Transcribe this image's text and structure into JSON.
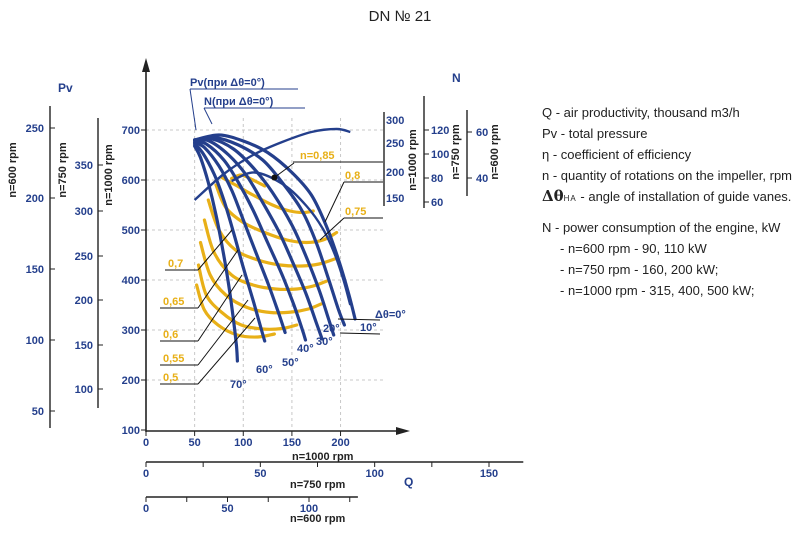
{
  "title": "DN № 21",
  "legend": {
    "q": "Q - air productivity, thousand m3/h",
    "pv": "Pv - total pressure",
    "eta": "η - coefficient of efficiency",
    "n": "n - quantity of rotations on the impeller, rpm",
    "angle_symbol": "Δθ",
    "angle_sub": "НА",
    "angle_text": " - angle of installation of guide vanes.",
    "power": "N - power consumption of the engine, kW",
    "power_600": "- n=600 rpm - 90, 110 kW",
    "power_750": "- n=750 rpm - 160, 200 kW;",
    "power_1000": "- n=1000 rpm - 315, 400, 500 kW;"
  },
  "colors": {
    "blue": "#243f8c",
    "yellow": "#e8b018",
    "grid": "#c8c8c8",
    "axis": "#222222"
  },
  "chart_data": {
    "type": "line",
    "x_axes": [
      {
        "label": "n=1000 rpm",
        "range": [
          0,
          220
        ],
        "ticks": [
          0,
          50,
          100,
          150,
          200
        ]
      },
      {
        "label": "n=750 rpm",
        "range": [
          0,
          165
        ],
        "ticks": [
          0,
          50,
          100,
          150
        ]
      },
      {
        "label": "n=600 rpm",
        "range": [
          0,
          130
        ],
        "ticks": [
          0,
          50,
          100
        ]
      }
    ],
    "x_symbol": "Q",
    "y_axes": [
      {
        "label": "n=1000 rpm",
        "ticks": [
          100,
          200,
          300,
          400,
          500,
          600,
          700
        ]
      },
      {
        "label": "n=750 rpm",
        "ticks": [
          100,
          150,
          200,
          250,
          300,
          350
        ]
      },
      {
        "label": "n=600 rpm",
        "ticks": [
          50,
          100,
          150,
          200,
          250
        ]
      }
    ],
    "y_symbol": "Pv",
    "n_axes": [
      {
        "label": "n=1000 rpm",
        "ticks": [
          150,
          200,
          250,
          300
        ]
      },
      {
        "label": "n=750 rpm",
        "ticks": [
          60,
          80,
          100,
          120
        ]
      },
      {
        "label": "n=600 rpm",
        "ticks": [
          40,
          60
        ]
      }
    ],
    "n_symbol": "N",
    "pv_curves": [
      {
        "angle": "0°",
        "points": [
          [
            50,
            680
          ],
          [
            75,
            690
          ],
          [
            100,
            678
          ],
          [
            125,
            655
          ],
          [
            150,
            615
          ],
          [
            170,
            570
          ],
          [
            185,
            510
          ],
          [
            198,
            440
          ],
          [
            208,
            375
          ],
          [
            215,
            322
          ]
        ]
      },
      {
        "angle": "10°",
        "points": [
          [
            50,
            680
          ],
          [
            70,
            685
          ],
          [
            95,
            670
          ],
          [
            120,
            640
          ],
          [
            140,
            595
          ],
          [
            160,
            540
          ],
          [
            175,
            475
          ],
          [
            188,
            400
          ],
          [
            198,
            340
          ],
          [
            204,
            310
          ]
        ]
      },
      {
        "angle": "20°",
        "points": [
          [
            50,
            680
          ],
          [
            68,
            682
          ],
          [
            90,
            662
          ],
          [
            110,
            625
          ],
          [
            130,
            575
          ],
          [
            150,
            510
          ],
          [
            165,
            445
          ],
          [
            178,
            380
          ],
          [
            188,
            320
          ],
          [
            193,
            290
          ]
        ]
      },
      {
        "angle": "30°",
        "points": [
          [
            50,
            680
          ],
          [
            65,
            678
          ],
          [
            85,
            650
          ],
          [
            103,
            610
          ],
          [
            120,
            555
          ],
          [
            137,
            495
          ],
          [
            152,
            430
          ],
          [
            165,
            370
          ],
          [
            175,
            315
          ],
          [
            181,
            282
          ]
        ]
      },
      {
        "angle": "40°",
        "points": [
          [
            50,
            678
          ],
          [
            62,
            672
          ],
          [
            80,
            640
          ],
          [
            95,
            595
          ],
          [
            110,
            540
          ],
          [
            125,
            475
          ],
          [
            140,
            410
          ],
          [
            152,
            350
          ],
          [
            160,
            305
          ],
          [
            164,
            280
          ]
        ]
      },
      {
        "angle": "50°",
        "points": [
          [
            50,
            675
          ],
          [
            60,
            665
          ],
          [
            75,
            628
          ],
          [
            88,
            580
          ],
          [
            100,
            520
          ],
          [
            113,
            455
          ],
          [
            126,
            390
          ],
          [
            137,
            330
          ],
          [
            143,
            295
          ]
        ]
      },
      {
        "angle": "60°",
        "points": [
          [
            50,
            672
          ],
          [
            58,
            655
          ],
          [
            70,
            612
          ],
          [
            80,
            560
          ],
          [
            90,
            495
          ],
          [
            100,
            425
          ],
          [
            110,
            360
          ],
          [
            118,
            305
          ],
          [
            122,
            278
          ]
        ]
      },
      {
        "angle": "70°",
        "points": [
          [
            50,
            668
          ],
          [
            56,
            645
          ],
          [
            64,
            595
          ],
          [
            72,
            530
          ],
          [
            79,
            460
          ],
          [
            85,
            390
          ],
          [
            90,
            320
          ],
          [
            93,
            268
          ],
          [
            94,
            238
          ]
        ]
      }
    ],
    "eta_curves": [
      {
        "label": "0,85",
        "points": [
          [
            88,
            603
          ],
          [
            98,
            610
          ],
          [
            110,
            600
          ],
          [
            122,
            588
          ]
        ]
      },
      {
        "label": "0,8",
        "points": [
          [
            78,
            605
          ],
          [
            92,
            590
          ],
          [
            110,
            570
          ],
          [
            130,
            550
          ],
          [
            148,
            538
          ],
          [
            162,
            535
          ],
          [
            172,
            538
          ]
        ]
      },
      {
        "label": "0,75",
        "points": [
          [
            72,
            590
          ],
          [
            82,
            545
          ],
          [
            100,
            515
          ],
          [
            122,
            495
          ],
          [
            145,
            480
          ],
          [
            165,
            475
          ],
          [
            182,
            480
          ],
          [
            196,
            495
          ]
        ]
      },
      {
        "label": "0,7",
        "points": [
          [
            64,
            560
          ],
          [
            75,
            500
          ],
          [
            92,
            460
          ],
          [
            115,
            440
          ],
          [
            138,
            430
          ],
          [
            160,
            428
          ],
          [
            178,
            432
          ],
          [
            194,
            442
          ]
        ]
      },
      {
        "label": "0,65",
        "points": [
          [
            60,
            520
          ],
          [
            70,
            455
          ],
          [
            88,
            410
          ],
          [
            110,
            390
          ],
          [
            133,
            382
          ],
          [
            155,
            382
          ],
          [
            172,
            388
          ],
          [
            186,
            398
          ]
        ]
      },
      {
        "label": "0,6",
        "points": [
          [
            56,
            475
          ],
          [
            66,
            410
          ],
          [
            82,
            370
          ],
          [
            104,
            345
          ],
          [
            128,
            335
          ],
          [
            150,
            336
          ],
          [
            167,
            342
          ],
          [
            180,
            352
          ]
        ]
      },
      {
        "label": "0,55",
        "points": [
          [
            54,
            430
          ],
          [
            62,
            370
          ],
          [
            78,
            335
          ],
          [
            98,
            310
          ],
          [
            120,
            302
          ],
          [
            140,
            303
          ],
          [
            155,
            310
          ]
        ]
      },
      {
        "label": "0,5",
        "points": [
          [
            52,
            390
          ],
          [
            60,
            340
          ],
          [
            74,
            310
          ],
          [
            94,
            290
          ],
          [
            115,
            286
          ],
          [
            132,
            292
          ]
        ]
      }
    ],
    "n_curves": [
      {
        "label": "Pv(при Δθ=0°)",
        "points": [
          [
            50,
            560
          ],
          [
            80,
            612
          ],
          [
            110,
            650
          ],
          [
            140,
            676
          ],
          [
            170,
            696
          ],
          [
            196,
            702
          ],
          [
            210,
            696
          ]
        ]
      },
      {
        "label": "N(при Δθ=0°)",
        "points": [
          [
            88,
            598
          ],
          [
            112,
            615
          ],
          [
            142,
            590
          ],
          [
            165,
            548
          ],
          [
            182,
            502
          ],
          [
            194,
            452
          ],
          [
            203,
            400
          ],
          [
            210,
            350
          ]
        ]
      }
    ],
    "angle_labels": [
      "Δθ=0°",
      "10°",
      "20°",
      "30°",
      "40°",
      "50°",
      "60°",
      "70°"
    ],
    "eta_labels": [
      "n=0,85",
      "0,8",
      "0,75",
      "0,7",
      "0,65",
      "0,6",
      "0,55",
      "0,5"
    ],
    "xlim": [
      0,
      220
    ],
    "ylim": [
      100,
      700
    ]
  }
}
